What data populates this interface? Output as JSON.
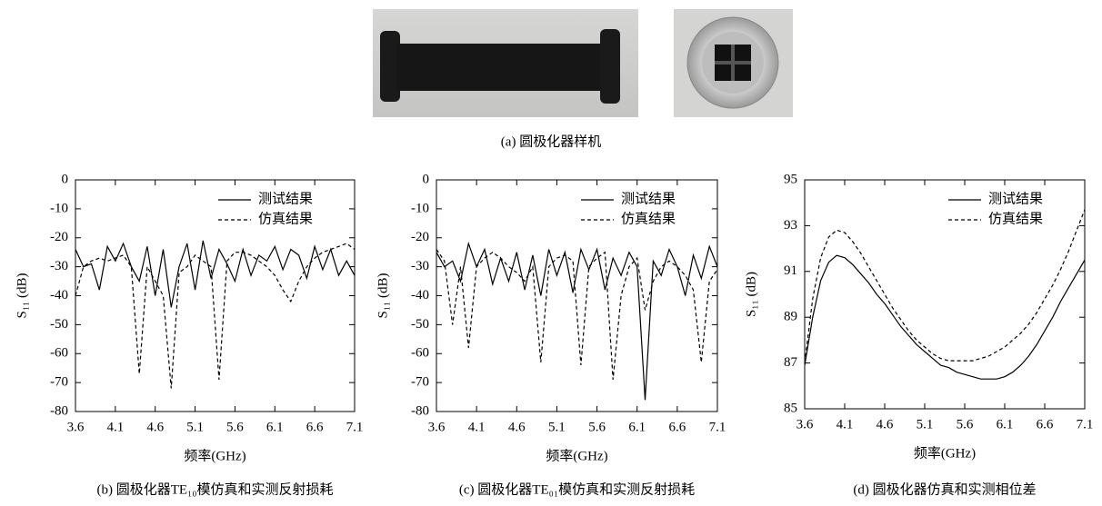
{
  "figure_caption": "(a) 圆极化器样机",
  "chart_data": [
    {
      "type": "line",
      "caption": "(b) 圆极化器TE₁₀模仿真和实测反射损耗",
      "x_label": "频率(GHz)",
      "y_label": "S₁₁ (dB)",
      "x": [
        3.6,
        3.7,
        3.8,
        3.9,
        4.0,
        4.1,
        4.2,
        4.3,
        4.4,
        4.5,
        4.6,
        4.7,
        4.8,
        4.9,
        5.0,
        5.1,
        5.2,
        5.3,
        5.4,
        5.5,
        5.6,
        5.7,
        5.8,
        5.9,
        6.0,
        6.1,
        6.2,
        6.3,
        6.4,
        6.5,
        6.6,
        6.7,
        6.8,
        6.9,
        7.0,
        7.1
      ],
      "xlim": [
        3.6,
        7.1
      ],
      "xticks": [
        3.6,
        4.1,
        4.6,
        5.1,
        5.6,
        6.1,
        6.6,
        7.1
      ],
      "ylim": [
        -80,
        0
      ],
      "yticks": [
        -80,
        -70,
        -60,
        -50,
        -40,
        -30,
        -20,
        -10,
        0
      ],
      "legend": "top-right",
      "series": [
        {
          "name": "测试结果",
          "color": "#000000",
          "line_style": "solid",
          "values": [
            -24,
            -30,
            -29,
            -38,
            -23,
            -28,
            -22,
            -30,
            -35,
            -23,
            -40,
            -24,
            -44,
            -30,
            -22,
            -38,
            -21,
            -34,
            -24,
            -29,
            -35,
            -24,
            -33,
            -26,
            -28,
            -23,
            -31,
            -24,
            -26,
            -34,
            -23,
            -31,
            -24,
            -33,
            -28,
            -33
          ]
        },
        {
          "name": "仿真结果",
          "color": "#000000",
          "line_style": "dashed",
          "values": [
            -40,
            -30,
            -28,
            -27,
            -28,
            -27,
            -26,
            -30,
            -67,
            -30,
            -35,
            -40,
            -72,
            -32,
            -30,
            -26,
            -28,
            -30,
            -69,
            -28,
            -25,
            -25,
            -26,
            -28,
            -30,
            -33,
            -38,
            -42,
            -35,
            -30,
            -27,
            -25,
            -24,
            -23,
            -22,
            -24
          ]
        }
      ]
    },
    {
      "type": "line",
      "caption": "(c) 圆极化器TE₀₁模仿真和实测反射损耗",
      "x_label": "频率(GHz)",
      "y_label": "S₁₁ (dB)",
      "x": [
        3.6,
        3.7,
        3.8,
        3.9,
        4.0,
        4.1,
        4.2,
        4.3,
        4.4,
        4.5,
        4.6,
        4.7,
        4.8,
        4.9,
        5.0,
        5.1,
        5.2,
        5.3,
        5.4,
        5.5,
        5.6,
        5.7,
        5.8,
        5.9,
        6.0,
        6.1,
        6.2,
        6.3,
        6.4,
        6.5,
        6.6,
        6.7,
        6.8,
        6.9,
        7.0,
        7.1
      ],
      "xlim": [
        3.6,
        7.1
      ],
      "xticks": [
        3.6,
        4.1,
        4.6,
        5.1,
        5.6,
        6.1,
        6.6,
        7.1
      ],
      "ylim": [
        -80,
        0
      ],
      "yticks": [
        -80,
        -70,
        -60,
        -50,
        -40,
        -30,
        -20,
        -10,
        0
      ],
      "legend": "top-right",
      "series": [
        {
          "name": "测试结果",
          "color": "#000000",
          "line_style": "solid",
          "values": [
            -25,
            -30,
            -28,
            -35,
            -22,
            -30,
            -24,
            -36,
            -27,
            -35,
            -25,
            -38,
            -26,
            -40,
            -24,
            -33,
            -25,
            -39,
            -24,
            -31,
            -24,
            -38,
            -27,
            -33,
            -25,
            -30,
            -76,
            -28,
            -33,
            -24,
            -30,
            -40,
            -26,
            -34,
            -23,
            -30
          ]
        },
        {
          "name": "仿真结果",
          "color": "#000000",
          "line_style": "dashed",
          "values": [
            -24,
            -28,
            -50,
            -30,
            -58,
            -30,
            -27,
            -25,
            -27,
            -30,
            -32,
            -35,
            -30,
            -63,
            -30,
            -27,
            -26,
            -28,
            -64,
            -30,
            -27,
            -25,
            -69,
            -40,
            -30,
            -27,
            -45,
            -35,
            -30,
            -28,
            -30,
            -33,
            -38,
            -63,
            -35,
            -31
          ]
        }
      ]
    },
    {
      "type": "line",
      "caption": "(d) 圆极化器仿真和实测相位差",
      "x_label": "频率(GHz)",
      "y_label": "S₁₁ (dB)",
      "x": [
        3.6,
        3.7,
        3.8,
        3.9,
        4.0,
        4.1,
        4.2,
        4.3,
        4.4,
        4.5,
        4.6,
        4.7,
        4.8,
        4.9,
        5.0,
        5.1,
        5.2,
        5.3,
        5.4,
        5.5,
        5.6,
        5.7,
        5.8,
        5.9,
        6.0,
        6.1,
        6.2,
        6.3,
        6.4,
        6.5,
        6.6,
        6.7,
        6.8,
        6.9,
        7.0,
        7.1
      ],
      "xlim": [
        3.6,
        7.1
      ],
      "xticks": [
        3.6,
        4.1,
        4.6,
        5.1,
        5.6,
        6.1,
        6.6,
        7.1
      ],
      "ylim": [
        85,
        95
      ],
      "yticks": [
        85,
        87,
        89,
        91,
        93,
        95
      ],
      "legend": "top-right",
      "series": [
        {
          "name": "测试结果",
          "color": "#000000",
          "line_style": "solid",
          "values": [
            86.9,
            89.0,
            90.6,
            91.4,
            91.7,
            91.6,
            91.3,
            90.9,
            90.5,
            90.0,
            89.6,
            89.1,
            88.6,
            88.2,
            87.8,
            87.5,
            87.2,
            86.9,
            86.8,
            86.6,
            86.5,
            86.4,
            86.3,
            86.3,
            86.3,
            86.4,
            86.6,
            86.9,
            87.3,
            87.8,
            88.4,
            89.0,
            89.7,
            90.3,
            90.9,
            91.5
          ]
        },
        {
          "name": "仿真结果",
          "color": "#000000",
          "line_style": "dashed",
          "values": [
            87.0,
            89.8,
            91.6,
            92.5,
            92.8,
            92.7,
            92.3,
            91.8,
            91.2,
            90.6,
            90.0,
            89.4,
            88.9,
            88.4,
            88.0,
            87.7,
            87.4,
            87.2,
            87.1,
            87.1,
            87.1,
            87.1,
            87.2,
            87.3,
            87.5,
            87.7,
            88.0,
            88.3,
            88.7,
            89.2,
            89.8,
            90.4,
            91.1,
            91.9,
            92.8,
            93.7
          ]
        }
      ]
    }
  ]
}
